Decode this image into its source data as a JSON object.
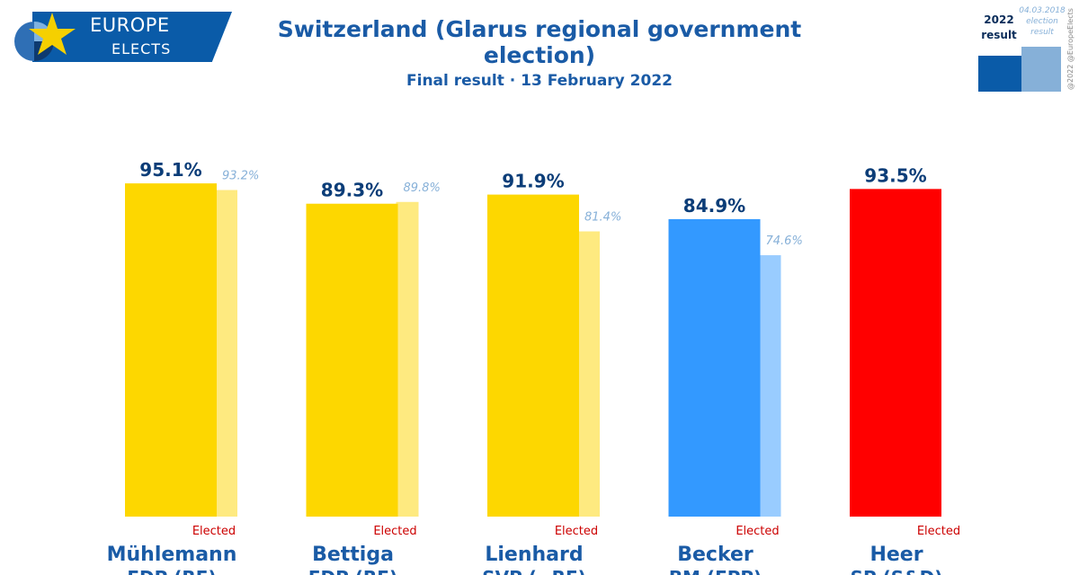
{
  "logo": {
    "line1": "EUROPE",
    "line2": "ELECTS",
    "colors": {
      "banner": "#0a5ba8",
      "star": "#f5d000"
    }
  },
  "header": {
    "title": "Switzerland (Glarus regional government election)",
    "subtitle": "Final result · 13 February 2022"
  },
  "legend": {
    "current_label": "2022 result",
    "previous_label": "04.03.2018 election result",
    "copyright": "@2022 @EuropeElects"
  },
  "chart_data": {
    "type": "bar",
    "categories": [
      "Mühlemann",
      "Bettiga",
      "Lienhard",
      "Becker",
      "Heer"
    ],
    "parties": [
      "FDP (RE)",
      "FDP (RE)",
      "SVP (~RE)",
      "BM (EPP)",
      "SP (S&D)"
    ],
    "status": [
      "Elected",
      "Elected",
      "Elected",
      "Elected",
      "Elected"
    ],
    "series": [
      {
        "name": "2022 result",
        "values": [
          95.1,
          89.3,
          91.9,
          84.9,
          93.5
        ],
        "labels": [
          "95.1%",
          "89.3%",
          "91.9%",
          "84.9%",
          "93.5%"
        ]
      },
      {
        "name": "04.03.2018 election result",
        "values": [
          93.2,
          89.8,
          81.4,
          74.6,
          null
        ],
        "labels": [
          "93.2%",
          "89.8%",
          "81.4%",
          "74.6%",
          ""
        ]
      }
    ],
    "colors_current": [
      "#fdd700",
      "#fdd700",
      "#fdd700",
      "#3399ff",
      "#ff0000"
    ],
    "colors_previous": [
      "#feea80",
      "#feea80",
      "#feea80",
      "#99ccff",
      "#ff8080"
    ],
    "ylim": [
      0,
      100
    ],
    "colors": {
      "label_current": "#0b3d78",
      "label_previous": "#86b0d8",
      "elected": "#cc0000",
      "candidate": "#1a5ba6"
    }
  }
}
